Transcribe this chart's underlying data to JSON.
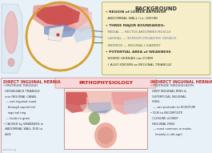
{
  "bg_top": "#e8f0f8",
  "bg_bottom": "#fce8e8",
  "background_box_color": "#f5eec8",
  "background_box_edge": "#c8b84a",
  "title_bg": "BACKGROUND",
  "pathophys_title": "PATHOPHYSIOLOGY",
  "direct_title": "DIRECT INGUINAL HERNIA",
  "indirect_title": "INDIRECT INGUINAL HERNIA",
  "direct_text_lines": [
    "• PROTRUDE THROUGH",
    "  HESSELBACH TRIANGLE",
    "  into INGUINAL CANAL",
    "   — exit inguinal canal",
    "     through superficial",
    "     inguinal ring",
    "   — leads to groin",
    "• CAUSED by WEAKNESS in",
    "  ABDOMINAL WALL DUE to",
    "  AGE"
  ],
  "indirect_text_lines": [
    "• PROTRUDE THROUGH BOTH",
    "  DEEP INGUINAL RING &",
    "  SUPERFICIAL INGUINAL",
    "  RING",
    "   — can protrude to SCROTUM",
    "• DUE to INCOMPLETE",
    "  CLOSURE of DEEP",
    "  INGUINAL RING",
    "   — most common in males",
    "     (mainly in old age)"
  ],
  "bg_text": [
    "• REGION of LOWER ANTERIOR",
    "  ABDOMINAL WALL (i.e. GROIN)",
    "• THREE MAJOR BOUNDARIES:",
    "  MEDIAL — RECTUS ABDOMINIS MUSCLE",
    "  LATERAL — INFERIOR EPIGASTRIC VESSELS",
    "  INFERIOR — INGUINAL LIGAMENT",
    "• POTENTIAL AREA of WEAKNESS",
    "  WHERE HERNIAS can FORM",
    "  ♯ ALSO KNOWN as INGUINAL TRIANGLE"
  ],
  "medial_color": "#7060a0",
  "lateral_color": "#6080b0",
  "inferior_color": "#507050",
  "col_dark": "#333333",
  "col_red_title": "#bb2222",
  "col_watermark": "#909090",
  "circle_color": "#d4a030",
  "anat_peach": "#f0c8a8",
  "anat_pink": "#e89898",
  "anat_red": "#c84040",
  "anat_darkred": "#a03030",
  "anat_blue": "#7090c8",
  "anat_lightblue": "#b8d0e8",
  "anat_white": "#f0ece8",
  "anat_lightpink": "#f0c0b8",
  "anat_muscle": "#d07878",
  "anat_green": "#789060",
  "watermark": "osmosis.org"
}
